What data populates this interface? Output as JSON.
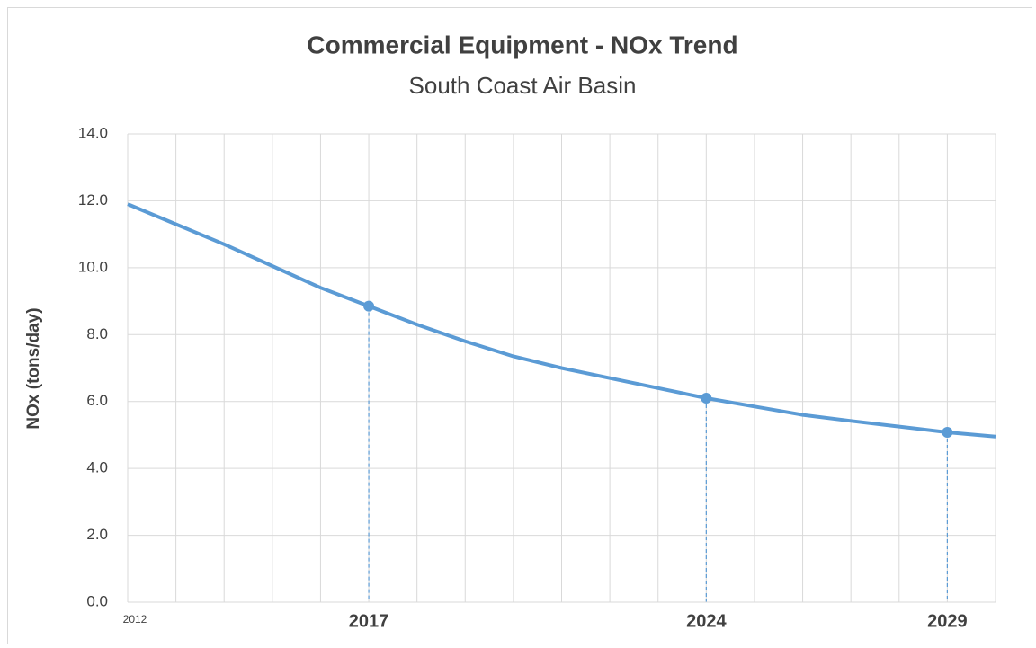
{
  "chart_data": {
    "type": "line",
    "title": "Commercial Equipment - NOx Trend",
    "subtitle": "South Coast Air Basin",
    "y_label": "NOx (tons/day)",
    "x": [
      2012,
      2013,
      2014,
      2015,
      2016,
      2017,
      2018,
      2019,
      2020,
      2021,
      2022,
      2023,
      2024,
      2025,
      2026,
      2027,
      2028,
      2029,
      2030
    ],
    "values": [
      11.9,
      11.3,
      10.7,
      10.05,
      9.4,
      8.85,
      8.3,
      7.8,
      7.35,
      7.0,
      6.7,
      6.4,
      6.1,
      5.85,
      5.6,
      5.42,
      5.25,
      5.08,
      4.95
    ],
    "color": "#5b9bd5",
    "highlight_x": [
      2017,
      2024,
      2029
    ],
    "xlim": [
      2012,
      2030
    ],
    "xticks": [
      2012,
      {
        "value": 2013,
        "label": null
      },
      {
        "value": 2014,
        "label": null
      },
      {
        "value": 2015,
        "label": null
      },
      {
        "value": 2016,
        "label": null
      },
      2017,
      {
        "value": 2018,
        "label": null
      },
      {
        "value": 2019,
        "label": null
      },
      {
        "value": 2020,
        "label": null
      },
      {
        "value": 2021,
        "label": null
      },
      {
        "value": 2022,
        "label": null
      },
      {
        "value": 2023,
        "label": null
      },
      2024,
      {
        "value": 2025,
        "label": null
      },
      {
        "value": 2026,
        "label": null
      },
      {
        "value": 2027,
        "label": null
      },
      {
        "value": 2028,
        "label": null
      },
      2029,
      {
        "value": 2030,
        "label": null
      }
    ],
    "ylim": [
      0,
      14
    ],
    "yticks": [
      {
        "value": 0,
        "label": "0.0"
      },
      {
        "value": 2,
        "label": "2.0"
      },
      {
        "value": 4,
        "label": "4.0"
      },
      {
        "value": 6,
        "label": "6.0"
      },
      {
        "value": 8,
        "label": "8.0"
      },
      {
        "value": 10,
        "label": "10.0"
      },
      {
        "value": 12,
        "label": "12.0"
      },
      {
        "value": 14,
        "label": "14.0"
      }
    ],
    "grid": true
  }
}
